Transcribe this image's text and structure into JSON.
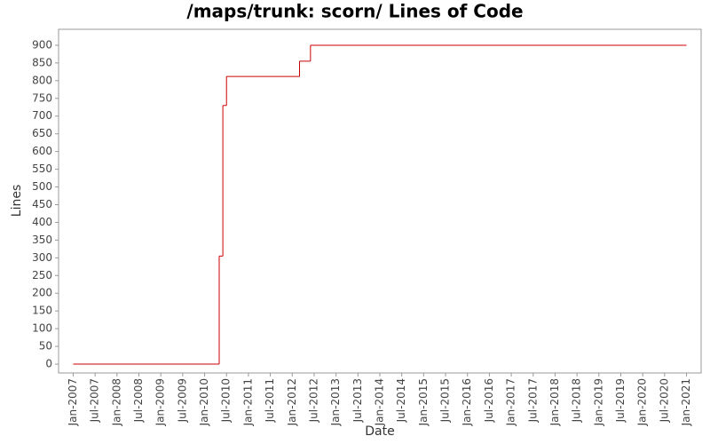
{
  "chart_data": {
    "type": "step-line",
    "title": "/maps/trunk: scorn/ Lines of Code",
    "xlabel": "Date",
    "ylabel": "Lines",
    "x": [
      "2007-01",
      "2010-05",
      "2010-06",
      "2010-07",
      "2012-03",
      "2012-06",
      "2021-01"
    ],
    "series": [
      {
        "name": "Lines",
        "color": "#cc0000",
        "values": [
          0,
          305,
          730,
          812,
          855,
          900,
          900
        ]
      }
    ],
    "xlim": [
      "2006-09",
      "2021-05"
    ],
    "xticks": [
      {
        "value": "2007-01",
        "label": "Jan-2007"
      },
      {
        "value": "2007-07",
        "label": "Jul-2007"
      },
      {
        "value": "2008-01",
        "label": "Jan-2008"
      },
      {
        "value": "2008-07",
        "label": "Jul-2008"
      },
      {
        "value": "2009-01",
        "label": "Jan-2009"
      },
      {
        "value": "2009-07",
        "label": "Jul-2009"
      },
      {
        "value": "2010-01",
        "label": "Jan-2010"
      },
      {
        "value": "2010-07",
        "label": "Jul-2010"
      },
      {
        "value": "2011-01",
        "label": "Jan-2011"
      },
      {
        "value": "2011-07",
        "label": "Jul-2011"
      },
      {
        "value": "2012-01",
        "label": "Jan-2012"
      },
      {
        "value": "2012-07",
        "label": "Jul-2012"
      },
      {
        "value": "2013-01",
        "label": "Jan-2013"
      },
      {
        "value": "2013-07",
        "label": "Jul-2013"
      },
      {
        "value": "2014-01",
        "label": "Jan-2014"
      },
      {
        "value": "2014-07",
        "label": "Jul-2014"
      },
      {
        "value": "2015-01",
        "label": "Jan-2015"
      },
      {
        "value": "2015-07",
        "label": "Jul-2015"
      },
      {
        "value": "2016-01",
        "label": "Jan-2016"
      },
      {
        "value": "2016-07",
        "label": "Jul-2016"
      },
      {
        "value": "2017-01",
        "label": "Jan-2017"
      },
      {
        "value": "2017-07",
        "label": "Jul-2017"
      },
      {
        "value": "2018-01",
        "label": "Jan-2018"
      },
      {
        "value": "2018-07",
        "label": "Jul-2018"
      },
      {
        "value": "2019-01",
        "label": "Jan-2019"
      },
      {
        "value": "2019-07",
        "label": "Jul-2019"
      },
      {
        "value": "2020-01",
        "label": "Jan-2020"
      },
      {
        "value": "2020-07",
        "label": "Jul-2020"
      },
      {
        "value": "2021-01",
        "label": "Jan-2021"
      }
    ],
    "ylim": [
      -25,
      945
    ],
    "yticks": [
      0,
      50,
      100,
      150,
      200,
      250,
      300,
      350,
      400,
      450,
      500,
      550,
      600,
      650,
      700,
      750,
      800,
      850,
      900
    ],
    "grid": false
  }
}
